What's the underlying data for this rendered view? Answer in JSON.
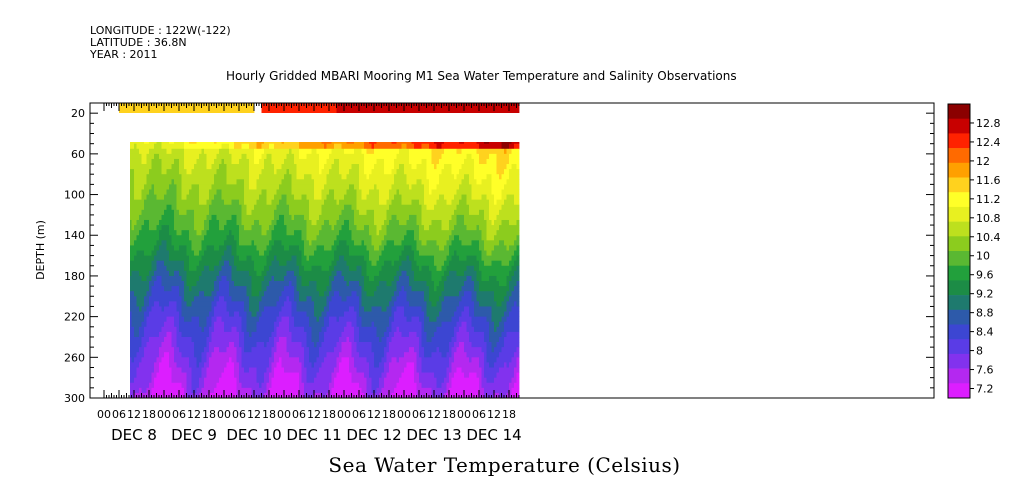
{
  "header": {
    "longitude": "LONGITUDE : 122W(-122)",
    "latitude": "LATITUDE : 36.8N",
    "year": "YEAR : 2011"
  },
  "chart_data": {
    "type": "heatmap",
    "title": "Hourly Gridded MBARI Mooring M1 Sea Water Temperature and Salinity Observations",
    "footer": "Sea Water Temperature (Celsius)",
    "ylabel": "DEPTH (m)",
    "xlabel": "",
    "ylim": [
      300,
      10
    ],
    "y_ticks": [
      20,
      60,
      100,
      140,
      180,
      220,
      260,
      300
    ],
    "x_hour_ticks": [
      "00",
      "06",
      "12",
      "18",
      "00",
      "06",
      "12",
      "18",
      "00",
      "06",
      "12",
      "18",
      "00",
      "06",
      "12",
      "18",
      "00",
      "06",
      "12",
      "18",
      "00",
      "06",
      "12",
      "18",
      "00",
      "06",
      "12",
      "18"
    ],
    "x_day_labels": [
      "DEC  8",
      "DEC  9",
      "DEC 10",
      "DEC 11",
      "DEC 12",
      "DEC 13",
      "DEC 14"
    ],
    "time_range_hours": [
      0,
      166
    ],
    "data_start_hour": 6,
    "colorbar": {
      "levels": [
        12.8,
        12.4,
        12,
        11.6,
        11.2,
        10.8,
        10.4,
        10,
        9.6,
        9.2,
        8.8,
        8.4,
        8,
        7.6,
        7.2
      ],
      "colors": [
        "#8b0000",
        "#c80000",
        "#ff2200",
        "#ff6a00",
        "#ffa000",
        "#ffd21e",
        "#ffff28",
        "#e8f020",
        "#bde01e",
        "#8ccc1e",
        "#5ab832",
        "#22a03c",
        "#1c8c46",
        "#1e7a6e",
        "#2d5aaa",
        "#3c46d2",
        "#5a3ce6",
        "#8232ee",
        "#b428f0",
        "#dc1eff"
      ]
    },
    "surface_temperature_band": "10 m: ~11.4–12.0 °C (Dec 8–10), rising to ~12.6–12.8 °C (Dec 11–14)",
    "profile": [
      {
        "depth": 10,
        "temp": 11.6
      },
      {
        "depth": 40,
        "temp": 10.9
      },
      {
        "depth": 60,
        "temp": 10.6
      },
      {
        "depth": 100,
        "temp": 10.2
      },
      {
        "depth": 140,
        "temp": 9.7
      },
      {
        "depth": 180,
        "temp": 9.0
      },
      {
        "depth": 220,
        "temp": 8.4
      },
      {
        "depth": 260,
        "temp": 7.9
      },
      {
        "depth": 300,
        "temp": 7.4
      }
    ]
  }
}
